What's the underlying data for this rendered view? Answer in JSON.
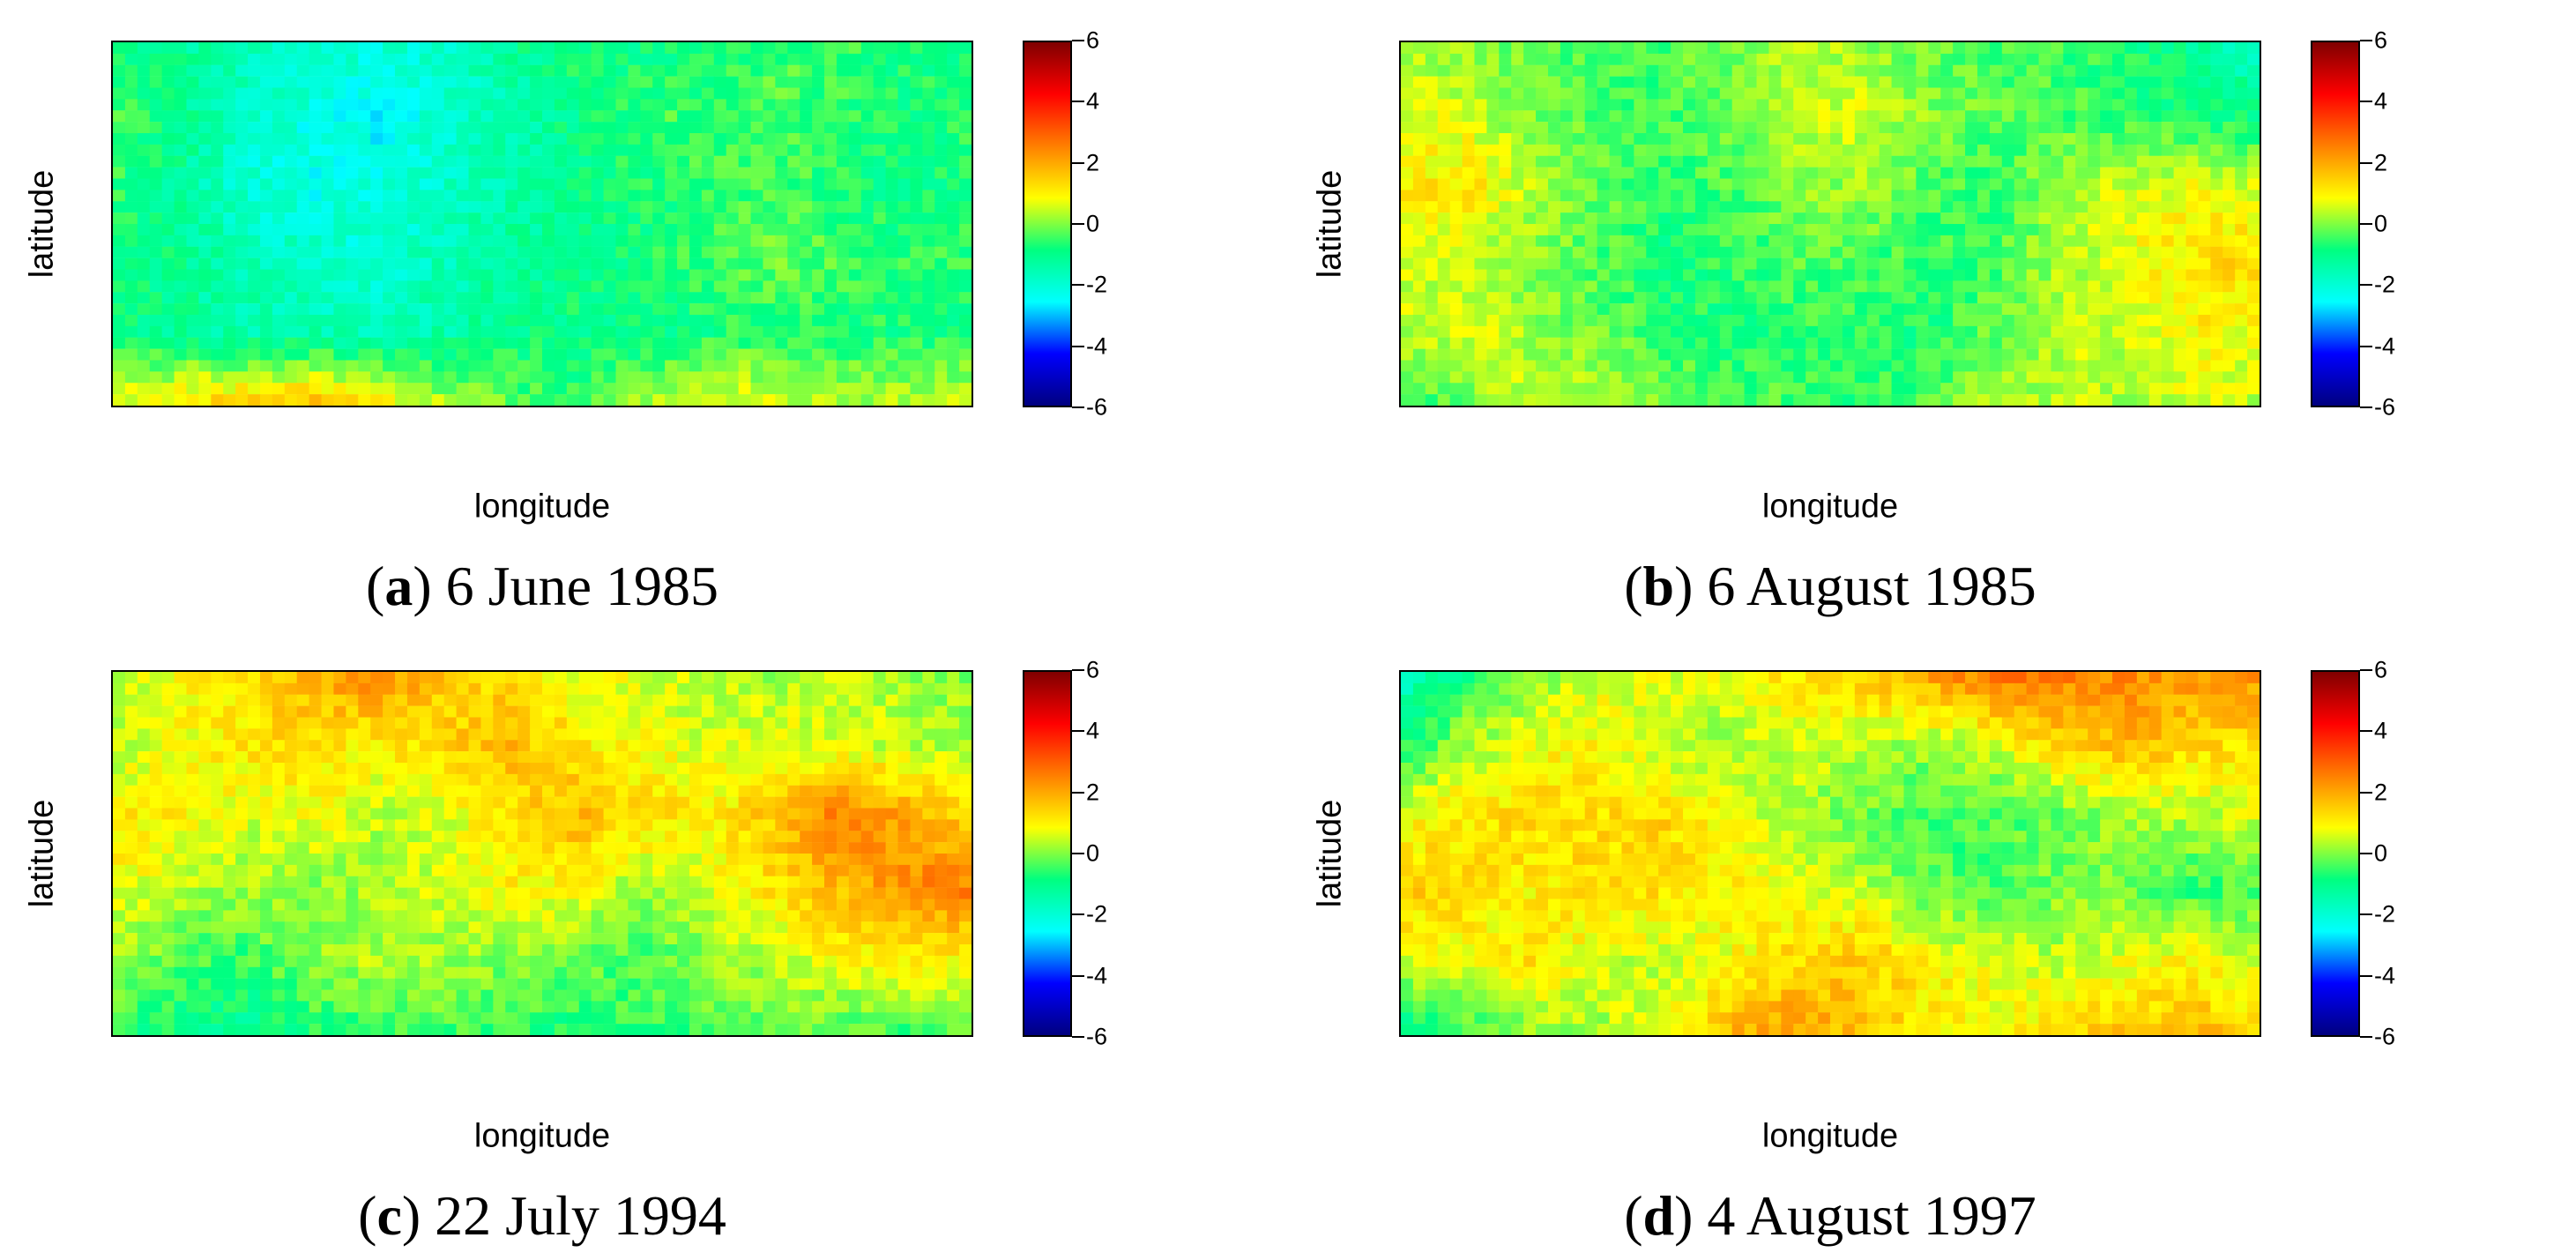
{
  "chart_data": [
    {
      "type": "heatmap",
      "panel_letter": "a",
      "title": "6 June 1985",
      "xlabel": "longitude",
      "ylabel": "latitude",
      "colorbar": {
        "min": -6,
        "max": 6,
        "ticks": [
          6,
          4,
          2,
          0,
          -2,
          -4,
          -6
        ]
      },
      "colormap": [
        "#00007f",
        "#0000ff",
        "#00ffff",
        "#00ff80",
        "#ffff00",
        "#ff7f00",
        "#ff0000",
        "#7f0000"
      ],
      "value_grid": [
        [
          -0.8,
          -1.2,
          -1.5,
          -1.8,
          -2.0,
          -2.0,
          -1.2,
          -0.8,
          -1.0,
          -0.8,
          -0.5,
          -0.5,
          -0.8,
          -0.8
        ],
        [
          -0.5,
          -1.0,
          -1.8,
          -2.2,
          -2.5,
          -2.0,
          -1.5,
          -1.0,
          -0.5,
          -0.5,
          -0.3,
          -0.6,
          -0.8,
          -0.6
        ],
        [
          -0.6,
          -1.2,
          -2.0,
          -2.3,
          -2.2,
          -1.8,
          -1.4,
          -1.0,
          -0.8,
          -0.6,
          -0.4,
          -0.7,
          -1.0,
          -0.8
        ],
        [
          -0.8,
          -1.0,
          -1.6,
          -1.8,
          -2.0,
          -1.6,
          -1.2,
          -1.0,
          -0.8,
          -0.5,
          -0.2,
          -0.4,
          -0.6,
          -0.6
        ],
        [
          -1.0,
          -1.2,
          -1.4,
          -1.5,
          -1.6,
          -1.4,
          -1.0,
          -0.9,
          -1.0,
          -0.8,
          -0.6,
          -0.7,
          -0.8,
          -0.8
        ],
        [
          0.8,
          1.2,
          1.6,
          1.8,
          1.2,
          0.4,
          -0.2,
          -0.6,
          0.2,
          1.0,
          0.6,
          0.2,
          0.4,
          0.6
        ]
      ]
    },
    {
      "type": "heatmap",
      "panel_letter": "b",
      "title": "6 August 1985",
      "xlabel": "longitude",
      "ylabel": "latitude",
      "colorbar": {
        "min": -6,
        "max": 6,
        "ticks": [
          6,
          4,
          2,
          0,
          -2,
          -4,
          -6
        ]
      },
      "colormap": [
        "#00007f",
        "#0000ff",
        "#00ffff",
        "#00ff80",
        "#ffff00",
        "#ff7f00",
        "#ff0000",
        "#7f0000"
      ],
      "value_grid": [
        [
          0.2,
          0.0,
          -0.3,
          -0.5,
          -0.4,
          0.0,
          0.5,
          0.2,
          -0.2,
          -0.4,
          -0.5,
          -0.8,
          -1.2,
          -1.8
        ],
        [
          0.8,
          0.6,
          0.0,
          -0.4,
          -0.5,
          -0.2,
          0.4,
          0.6,
          0.0,
          -0.3,
          -0.4,
          -0.6,
          -0.8,
          -1.0
        ],
        [
          1.0,
          1.2,
          0.4,
          -0.2,
          -0.6,
          -0.4,
          0.0,
          0.2,
          -0.4,
          -0.6,
          0.2,
          0.6,
          0.8,
          0.6
        ],
        [
          0.6,
          0.4,
          0.0,
          -0.4,
          -0.8,
          -0.6,
          -0.3,
          -0.4,
          -0.6,
          -0.4,
          0.2,
          0.8,
          1.2,
          1.4
        ],
        [
          0.4,
          0.6,
          0.2,
          -0.2,
          -0.6,
          -0.8,
          -0.6,
          -0.6,
          -0.8,
          -0.2,
          0.4,
          0.6,
          1.0,
          0.8
        ],
        [
          -0.8,
          -0.2,
          0.6,
          0.4,
          0.0,
          -0.4,
          -0.4,
          -0.6,
          -0.2,
          0.2,
          0.4,
          0.2,
          0.6,
          0.4
        ]
      ]
    },
    {
      "type": "heatmap",
      "panel_letter": "c",
      "title": "22 July 1994",
      "xlabel": "longitude",
      "ylabel": "latitude",
      "colorbar": {
        "min": -6,
        "max": 6,
        "ticks": [
          6,
          4,
          2,
          0,
          -2,
          -4,
          -6
        ]
      },
      "colormap": [
        "#00007f",
        "#0000ff",
        "#00ffff",
        "#00ff80",
        "#ffff00",
        "#ff7f00",
        "#ff0000",
        "#7f0000"
      ],
      "value_grid": [
        [
          0.4,
          0.8,
          1.2,
          1.8,
          2.6,
          1.6,
          1.2,
          0.8,
          0.6,
          0.4,
          0.2,
          0.4,
          0.2,
          0.0
        ],
        [
          0.2,
          0.8,
          1.2,
          1.4,
          1.0,
          1.4,
          1.8,
          1.2,
          0.8,
          0.6,
          0.8,
          0.6,
          0.4,
          0.2
        ],
        [
          1.2,
          1.0,
          0.6,
          0.8,
          0.4,
          0.6,
          1.2,
          1.8,
          1.4,
          1.0,
          1.6,
          2.6,
          2.0,
          1.4
        ],
        [
          0.8,
          0.4,
          0.2,
          0.0,
          0.2,
          0.6,
          1.0,
          0.8,
          0.2,
          0.6,
          1.2,
          1.8,
          2.4,
          2.6
        ],
        [
          0.2,
          -0.4,
          -0.6,
          0.0,
          0.4,
          0.2,
          0.0,
          -0.2,
          -0.4,
          0.0,
          0.4,
          0.8,
          1.0,
          0.8
        ],
        [
          -0.6,
          -1.0,
          -1.2,
          -0.8,
          -0.6,
          -0.4,
          -0.6,
          -0.8,
          -0.6,
          -0.4,
          -0.2,
          -0.4,
          -0.6,
          -0.4
        ]
      ]
    },
    {
      "type": "heatmap",
      "panel_letter": "d",
      "title": "4 August 1997",
      "xlabel": "longitude",
      "ylabel": "latitude",
      "colorbar": {
        "min": -6,
        "max": 6,
        "ticks": [
          6,
          4,
          2,
          0,
          -2,
          -4,
          -6
        ]
      },
      "colormap": [
        "#00007f",
        "#0000ff",
        "#00ffff",
        "#00ff80",
        "#ffff00",
        "#ff7f00",
        "#ff0000",
        "#7f0000"
      ],
      "value_grid": [
        [
          -1.8,
          -0.8,
          0.0,
          0.6,
          0.6,
          0.8,
          1.2,
          1.6,
          2.2,
          2.8,
          2.6,
          2.4,
          2.2,
          2.4
        ],
        [
          -0.8,
          0.2,
          0.8,
          1.0,
          0.4,
          0.2,
          0.6,
          0.4,
          0.2,
          0.6,
          1.4,
          1.8,
          1.4,
          1.2
        ],
        [
          0.8,
          1.2,
          1.4,
          1.2,
          1.4,
          0.8,
          0.2,
          -0.2,
          -0.6,
          -0.4,
          -0.2,
          0.2,
          0.4,
          0.6
        ],
        [
          1.6,
          1.2,
          1.0,
          1.4,
          1.2,
          1.0,
          0.8,
          0.4,
          -0.2,
          -0.4,
          0.0,
          -0.2,
          -0.6,
          -0.4
        ],
        [
          0.6,
          0.8,
          1.2,
          0.6,
          0.4,
          0.8,
          1.4,
          1.6,
          1.0,
          0.6,
          0.4,
          0.8,
          1.0,
          0.6
        ],
        [
          -1.2,
          -0.6,
          0.0,
          0.2,
          0.8,
          1.8,
          2.2,
          1.6,
          1.2,
          1.0,
          1.4,
          1.6,
          1.8,
          1.4
        ]
      ]
    }
  ]
}
